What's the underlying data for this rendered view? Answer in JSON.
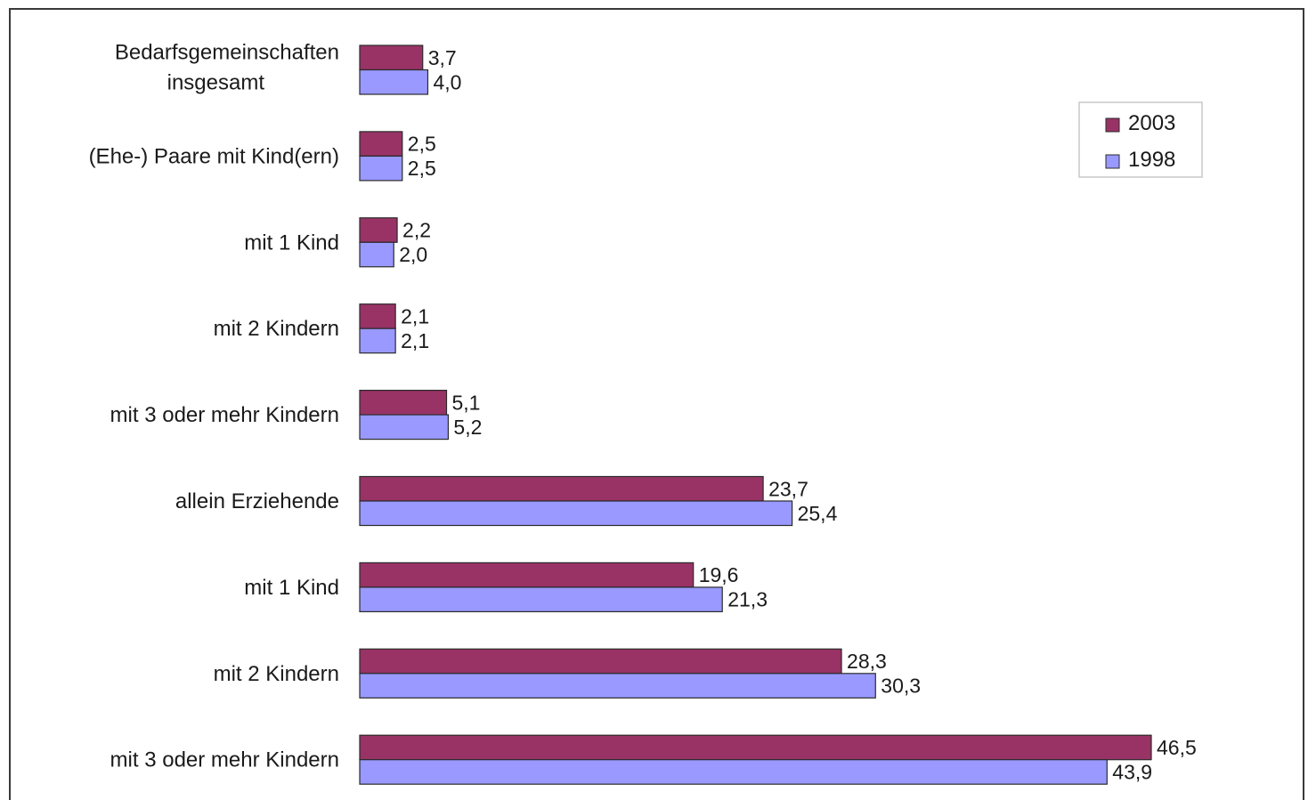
{
  "chart_data": {
    "type": "bar",
    "orientation": "horizontal",
    "title": "",
    "xlabel": "",
    "ylabel": "",
    "categories": [
      [
        "Bedarfsgemeinschaften",
        "insgesamt"
      ],
      [
        "(Ehe-) Paare mit Kind(ern)"
      ],
      [
        "mit 1 Kind"
      ],
      [
        "mit 2 Kindern"
      ],
      [
        "mit 3 oder mehr Kindern"
      ],
      [
        "allein Erziehende"
      ],
      [
        "mit 1 Kind"
      ],
      [
        "mit 2 Kindern"
      ],
      [
        "mit 3 oder mehr Kindern"
      ]
    ],
    "series": [
      {
        "name": "2003",
        "color": "#993366",
        "values": [
          3.7,
          2.5,
          2.2,
          2.1,
          5.1,
          23.7,
          19.6,
          28.3,
          46.5
        ],
        "labels": [
          "3,7",
          "2,5",
          "2,2",
          "2,1",
          "5,1",
          "23,7",
          "19,6",
          "28,3",
          "46,5"
        ]
      },
      {
        "name": "1998",
        "color": "#9999ff",
        "values": [
          4.0,
          2.5,
          2.0,
          2.1,
          5.2,
          25.4,
          21.3,
          30.3,
          43.9
        ],
        "labels": [
          "4,0",
          "2,5",
          "2,0",
          "2,1",
          "5,2",
          "25,4",
          "21,3",
          "30,3",
          "43,9"
        ]
      }
    ],
    "xlim": [
      0,
      50
    ],
    "grid": false,
    "legend_position": "top-right"
  }
}
